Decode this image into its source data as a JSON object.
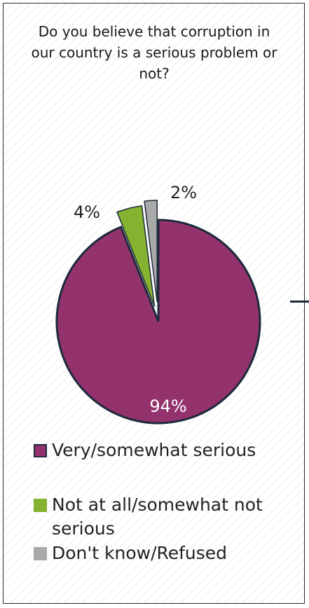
{
  "chart_data": {
    "type": "pie",
    "title": "Do you believe that corruption in our country is a serious problem or not?",
    "slices": [
      {
        "label": "Very/somewhat serious",
        "value": 94,
        "value_label": "94%",
        "color": "#94326e"
      },
      {
        "label": "Not at all/somewhat not serious",
        "value": 4,
        "value_label": "4%",
        "color": "#86b231"
      },
      {
        "label": "Don't know/Refused",
        "value": 2,
        "value_label": "2%",
        "color": "#a9a9a9"
      }
    ],
    "legend": {
      "placement": "bottom",
      "lines": [
        [
          "Very/somewhat serious"
        ],
        [
          "Not at all/somewhat not",
          "serious"
        ],
        [
          "Don't know/Refused"
        ]
      ]
    },
    "colors": {
      "outline": "#1c2a3a",
      "border": "#2a2a2a"
    }
  }
}
